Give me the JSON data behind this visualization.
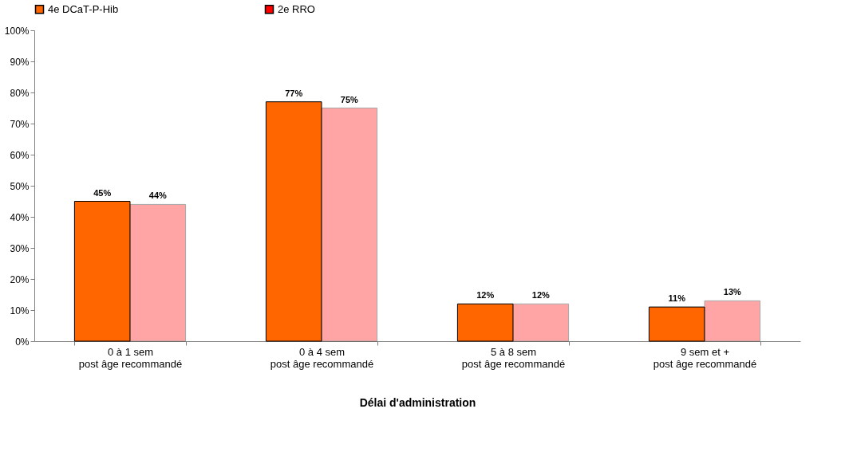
{
  "chart_data": {
    "type": "bar",
    "xlabel": "Délai d'administration",
    "categories": [
      "0 à 1 sem\npost âge recommandé",
      "0 à 4 sem\npost âge recommandé",
      "5 à 8 sem\npost âge recommandé",
      "9 sem et +\npost âge recommandé"
    ],
    "series": [
      {
        "name": "4e DCaT-P-Hib",
        "color": "#ff6600",
        "values": [
          45,
          77,
          12,
          11
        ],
        "value_labels": [
          "45%",
          "77%",
          "12%",
          "11%"
        ]
      },
      {
        "name": "2e RRO",
        "color": "#ff0000",
        "values": [
          44,
          75,
          12,
          13
        ],
        "value_labels": [
          "44%",
          "75%",
          "12%",
          "13%"
        ]
      }
    ],
    "ylim": [
      0,
      100
    ],
    "yticks": [
      {
        "value": 0,
        "label": "0%"
      },
      {
        "value": 10,
        "label": "10%"
      },
      {
        "value": 20,
        "label": "20%"
      },
      {
        "value": 30,
        "label": "30%"
      },
      {
        "value": 40,
        "label": "40%"
      },
      {
        "value": 50,
        "label": "50%"
      },
      {
        "value": 60,
        "label": "60%"
      },
      {
        "value": 70,
        "label": "70%"
      },
      {
        "value": 80,
        "label": "80%"
      },
      {
        "value": 90,
        "label": "90%"
      },
      {
        "value": 100,
        "label": "100%"
      }
    ],
    "grid": false,
    "legend": "top"
  }
}
